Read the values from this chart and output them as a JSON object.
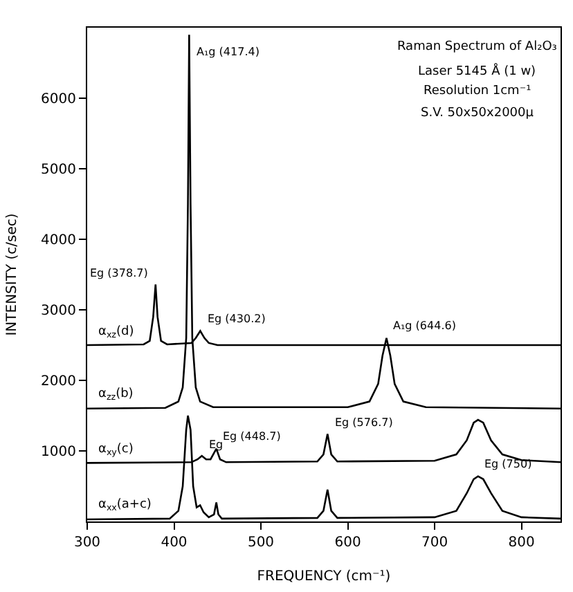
{
  "chart_data": {
    "type": "line",
    "xlabel": "FREQUENCY (cm⁻¹)",
    "ylabel": "INTENSITY (c/sec)",
    "xlim": [
      300,
      845
    ],
    "ylim": [
      0,
      7000
    ],
    "xticks": [
      300,
      400,
      500,
      600,
      700,
      800
    ],
    "yticks": [
      1000,
      2000,
      3000,
      4000,
      5000,
      6000
    ],
    "legend": false,
    "marker": "none",
    "line_style": "solid",
    "series": [
      {
        "name": "α$_{xz}$(d)",
        "color": "#000000",
        "x": [
          300,
          365,
          372,
          376,
          378.7,
          381,
          385,
          392,
          420,
          425,
          430.2,
          435,
          440,
          450,
          845
        ],
        "values": [
          2500,
          2510,
          2560,
          2900,
          3360,
          2900,
          2560,
          2510,
          2530,
          2600,
          2700,
          2600,
          2530,
          2500,
          2500
        ]
      },
      {
        "name": "α$_{zz}$(b)",
        "color": "#000000",
        "x": [
          300,
          390,
          405,
          410,
          414,
          416,
          417.4,
          419,
          421,
          425,
          430,
          445,
          600,
          625,
          635,
          640,
          644.6,
          649,
          654,
          664,
          690,
          845
        ],
        "values": [
          1600,
          1610,
          1700,
          1900,
          2600,
          4500,
          6900,
          4500,
          2600,
          1900,
          1700,
          1620,
          1620,
          1700,
          1950,
          2350,
          2600,
          2350,
          1950,
          1700,
          1620,
          1600
        ]
      },
      {
        "name": "α$_{xy}$(c)",
        "color": "#000000",
        "x": [
          300,
          420,
          427,
          432,
          437,
          442,
          448.7,
          453,
          460,
          565,
          572,
          576.7,
          581,
          588,
          700,
          725,
          737,
          745,
          750,
          756,
          765,
          778,
          800,
          845
        ],
        "values": [
          830,
          840,
          880,
          930,
          880,
          880,
          1030,
          880,
          840,
          850,
          950,
          1240,
          950,
          850,
          860,
          950,
          1150,
          1400,
          1440,
          1400,
          1150,
          950,
          870,
          840
        ]
      },
      {
        "name": "α$_{xx}$(a+c)",
        "color": "#000000",
        "x": [
          300,
          395,
          405,
          410,
          414,
          416,
          419,
          422,
          426,
          430,
          434,
          440,
          446,
          448.7,
          451,
          455,
          565,
          572,
          576.7,
          581,
          588,
          700,
          725,
          737,
          745,
          750,
          756,
          765,
          778,
          800,
          845
        ],
        "values": [
          30,
          40,
          150,
          500,
          1300,
          1500,
          1300,
          500,
          200,
          230,
          130,
          60,
          100,
          270,
          100,
          40,
          50,
          150,
          450,
          150,
          50,
          60,
          150,
          400,
          600,
          640,
          600,
          400,
          150,
          60,
          40
        ]
      }
    ],
    "annotations": [
      "Raman Spectrum of Al₂O₃",
      "Laser 5145 Å (1 w)",
      "Resolution 1cm⁻¹",
      "S.V. 50x50x2000μ",
      {
        "text": "A₁g (417.4)",
        "x": 417.4,
        "y": 6500
      },
      {
        "text": "Eg (378.7)",
        "x": 378.7,
        "y": 3360
      },
      {
        "text": "Eg (430.2)",
        "x": 430.2,
        "y": 2700
      },
      {
        "text": "A₁g (644.6)",
        "x": 644.6,
        "y": 2600
      },
      {
        "text": "Eg",
        "x": 432,
        "y": 930
      },
      {
        "text": "Eg (448.7)",
        "x": 448.7,
        "y": 1030
      },
      {
        "text": "Eg (576.7)",
        "x": 576.7,
        "y": 1240
      },
      {
        "text": "Eg (750)",
        "x": 750,
        "y": 640
      }
    ]
  }
}
